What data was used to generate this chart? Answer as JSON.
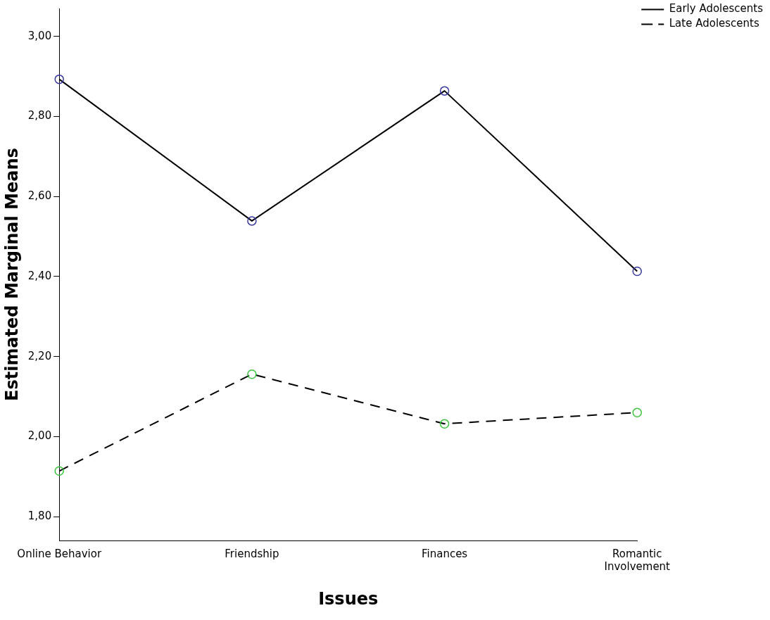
{
  "chart_data": {
    "type": "line",
    "xlabel": "Issues",
    "ylabel": "Estimated Marginal Means",
    "categories": [
      "Online Behavior",
      "Friendship",
      "Finances",
      "Romantic Involvement"
    ],
    "series": [
      {
        "name": "Early Adolescents",
        "color": "#000000",
        "colors": [
          "#3a3aa0",
          "#3a3aa0",
          "#3a3aa0",
          "#3a3aa0"
        ],
        "line_style": "solid",
        "values": [
          2.893,
          2.539,
          2.864,
          2.413
        ]
      },
      {
        "name": "Late Adolescents",
        "color": "#000000",
        "colors": [
          "#3cc43c",
          "#3cc43c",
          "#3cc43c",
          "#3cc43c"
        ],
        "line_style": "dashed",
        "values": [
          1.914,
          2.156,
          2.032,
          2.06
        ]
      }
    ],
    "ylim": [
      1.74,
      3.07
    ],
    "yticks": [
      {
        "value": 1.8,
        "label": "1,80"
      },
      {
        "value": 2.0,
        "label": "2,00"
      },
      {
        "value": 2.2,
        "label": "2,20"
      },
      {
        "value": 2.4,
        "label": "2,40"
      },
      {
        "value": 2.6,
        "label": "2,60"
      },
      {
        "value": 2.8,
        "label": "2,80"
      },
      {
        "value": 3.0,
        "label": "3,00"
      }
    ],
    "grid": false,
    "legend": "top right",
    "marker": "circle"
  }
}
